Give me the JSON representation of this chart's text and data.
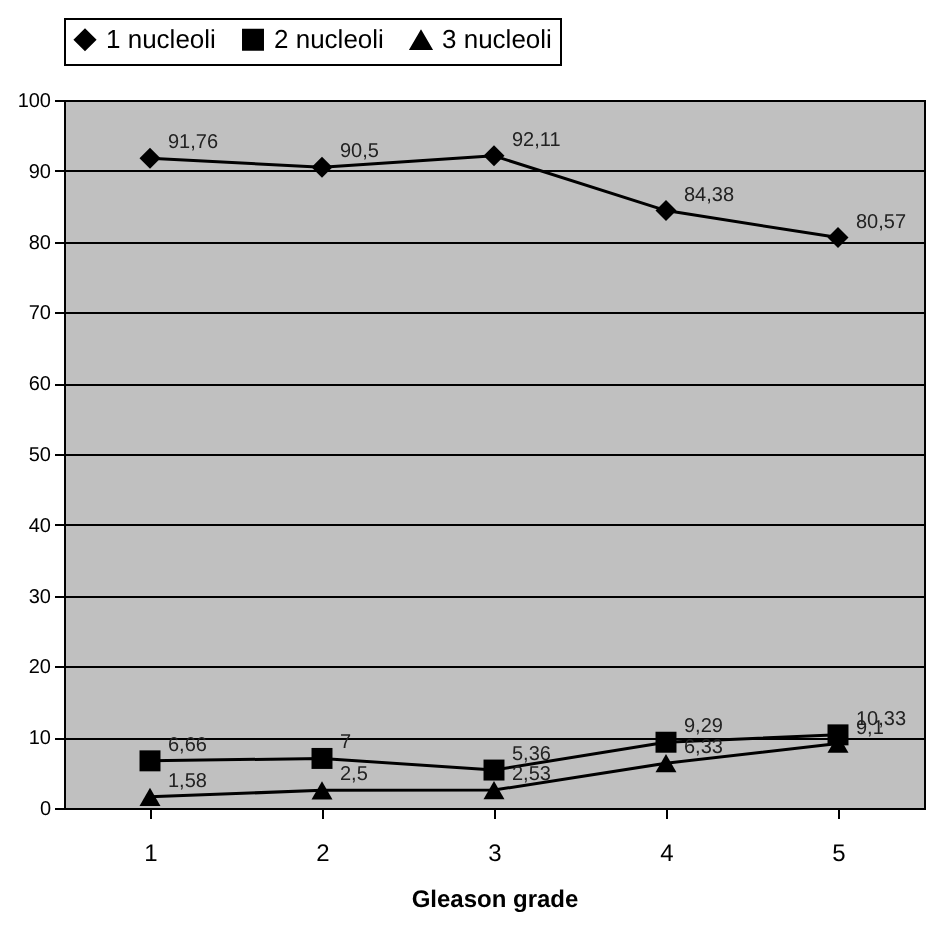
{
  "chart_data": {
    "type": "line",
    "xlabel": "Gleason grade",
    "categories": [
      "1",
      "2",
      "3",
      "4",
      "5"
    ],
    "series": [
      {
        "name": "1 nucleoli",
        "color": "#000000",
        "marker": "diamond",
        "values": [
          91.76,
          90.5,
          92.11,
          84.38,
          80.57
        ],
        "value_labels": [
          "91,76",
          "90,5",
          "92,11",
          "84,38",
          "80,57"
        ]
      },
      {
        "name": "2 nucleoli",
        "color": "#000000",
        "marker": "square",
        "values": [
          6.66,
          7,
          5.36,
          9.29,
          10.33
        ],
        "value_labels": [
          "6,66",
          "7",
          "5,36",
          "9,29",
          "10,33"
        ]
      },
      {
        "name": "3 nucleoli",
        "color": "#000000",
        "marker": "triangle",
        "values": [
          1.58,
          2.5,
          2.53,
          6.33,
          9.1
        ],
        "value_labels": [
          "1,58",
          "2,5",
          "2,53",
          "6,33",
          "9,1"
        ]
      }
    ],
    "ylim": [
      0,
      100
    ],
    "yticks": [
      0,
      10,
      20,
      30,
      40,
      50,
      60,
      70,
      80,
      90,
      100
    ],
    "grid": "y",
    "legend": "top",
    "line_style": "solid"
  }
}
